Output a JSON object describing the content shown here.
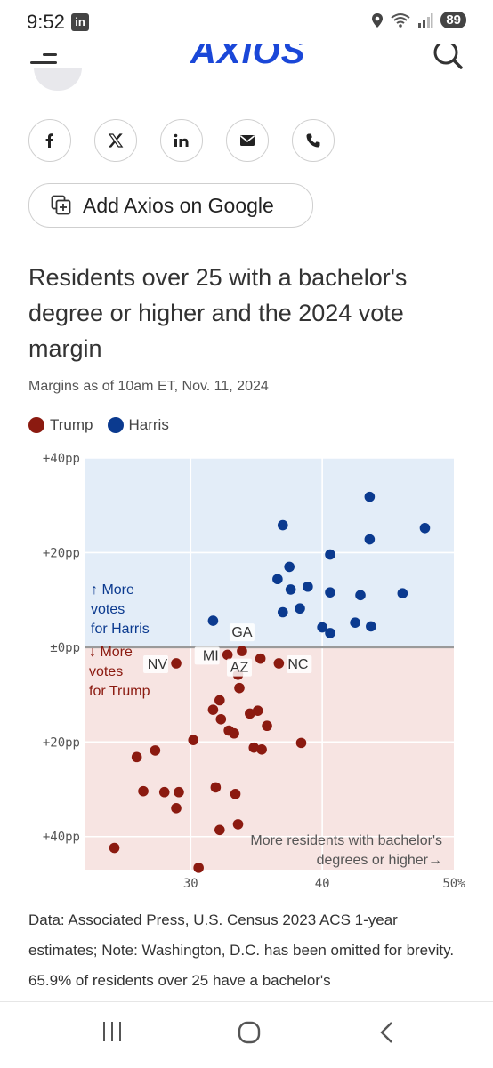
{
  "status": {
    "time": "9:52",
    "app_badge": "in",
    "battery": "89"
  },
  "header": {
    "logo": "AXIOS"
  },
  "share": {
    "buttons": [
      {
        "name": "facebook-icon"
      },
      {
        "name": "x-icon"
      },
      {
        "name": "linkedin-icon"
      },
      {
        "name": "email-icon"
      },
      {
        "name": "phone-icon"
      }
    ],
    "google_label": "Add Axios on Google"
  },
  "chart": {
    "title": "Residents over 25 with a bachelor's degree or higher and the 2024 vote margin",
    "subtitle": "Margins as of 10am ET, Nov. 11, 2024",
    "legend": [
      {
        "label": "Trump",
        "color": "#8b1a10"
      },
      {
        "label": "Harris",
        "color": "#0b3a8f"
      }
    ],
    "annotations": {
      "harris_zone": [
        "↑ More",
        "votes",
        "for Harris"
      ],
      "trump_zone": [
        "↓ More",
        "votes",
        "for Trump"
      ],
      "x_note": [
        "More residents with bachelor's",
        "degrees or higher→"
      ]
    }
  },
  "chart_data": {
    "type": "scatter",
    "xlabel": "",
    "ylabel": "",
    "xlim": [
      22,
      50
    ],
    "ylim": [
      -47,
      40
    ],
    "x_ticks": [
      {
        "value": 30,
        "label": "30"
      },
      {
        "value": 40,
        "label": "40"
      },
      {
        "value": 50,
        "label": "50%"
      }
    ],
    "y_ticks": [
      {
        "value": 40,
        "label": "+40pp"
      },
      {
        "value": 20,
        "label": "+20pp"
      },
      {
        "value": 0,
        "label": "±0pp"
      },
      {
        "value": -20,
        "label": "+20pp"
      },
      {
        "value": -40,
        "label": "+40pp"
      }
    ],
    "grid": true,
    "series": [
      {
        "name": "Harris",
        "color": "#0b3a8f",
        "points": [
          {
            "x": 43.6,
            "y": 31.8
          },
          {
            "x": 37.0,
            "y": 25.8
          },
          {
            "x": 43.6,
            "y": 22.8
          },
          {
            "x": 47.8,
            "y": 25.2
          },
          {
            "x": 40.6,
            "y": 19.6
          },
          {
            "x": 37.5,
            "y": 17.0
          },
          {
            "x": 36.6,
            "y": 14.4
          },
          {
            "x": 38.9,
            "y": 12.8
          },
          {
            "x": 37.6,
            "y": 12.2
          },
          {
            "x": 40.6,
            "y": 11.6
          },
          {
            "x": 42.9,
            "y": 11.0
          },
          {
            "x": 46.1,
            "y": 11.4
          },
          {
            "x": 38.3,
            "y": 8.2
          },
          {
            "x": 37.0,
            "y": 7.4
          },
          {
            "x": 31.7,
            "y": 5.6
          },
          {
            "x": 42.5,
            "y": 5.2
          },
          {
            "x": 40.0,
            "y": 4.2
          },
          {
            "x": 43.7,
            "y": 4.4
          },
          {
            "x": 40.6,
            "y": 3.0
          }
        ]
      },
      {
        "name": "Trump",
        "color": "#8b1a10",
        "points": [
          {
            "x": 33.9,
            "y": -0.8,
            "label": "GA"
          },
          {
            "x": 32.8,
            "y": -1.6,
            "label": "MI"
          },
          {
            "x": 35.3,
            "y": -2.4
          },
          {
            "x": 36.7,
            "y": -3.4,
            "label": "NC"
          },
          {
            "x": 28.9,
            "y": -3.4,
            "label": "NV"
          },
          {
            "x": 33.6,
            "y": -5.8
          },
          {
            "x": 33.7,
            "y": -8.6,
            "label": "AZ"
          },
          {
            "x": 32.2,
            "y": -11.2
          },
          {
            "x": 31.7,
            "y": -13.2
          },
          {
            "x": 34.5,
            "y": -14.0
          },
          {
            "x": 35.1,
            "y": -13.4
          },
          {
            "x": 32.3,
            "y": -15.2
          },
          {
            "x": 35.8,
            "y": -16.6
          },
          {
            "x": 32.9,
            "y": -17.6
          },
          {
            "x": 33.3,
            "y": -18.2
          },
          {
            "x": 30.2,
            "y": -19.6
          },
          {
            "x": 38.4,
            "y": -20.2
          },
          {
            "x": 34.8,
            "y": -21.2
          },
          {
            "x": 35.4,
            "y": -21.6
          },
          {
            "x": 27.3,
            "y": -21.8
          },
          {
            "x": 25.9,
            "y": -23.2
          },
          {
            "x": 31.9,
            "y": -29.6
          },
          {
            "x": 26.4,
            "y": -30.4
          },
          {
            "x": 28.0,
            "y": -30.6
          },
          {
            "x": 29.1,
            "y": -30.6
          },
          {
            "x": 33.4,
            "y": -31.0
          },
          {
            "x": 28.9,
            "y": -34.0
          },
          {
            "x": 33.6,
            "y": -37.4
          },
          {
            "x": 32.2,
            "y": -38.6
          },
          {
            "x": 24.2,
            "y": -42.4
          },
          {
            "x": 30.6,
            "y": -46.6
          }
        ]
      }
    ]
  },
  "source": "Data: Associated Press, U.S. Census 2023 ACS 1-year estimates; Note: Washington, D.C. has been omitted for brevity. 65.9% of residents over 25 have a bachelor's"
}
